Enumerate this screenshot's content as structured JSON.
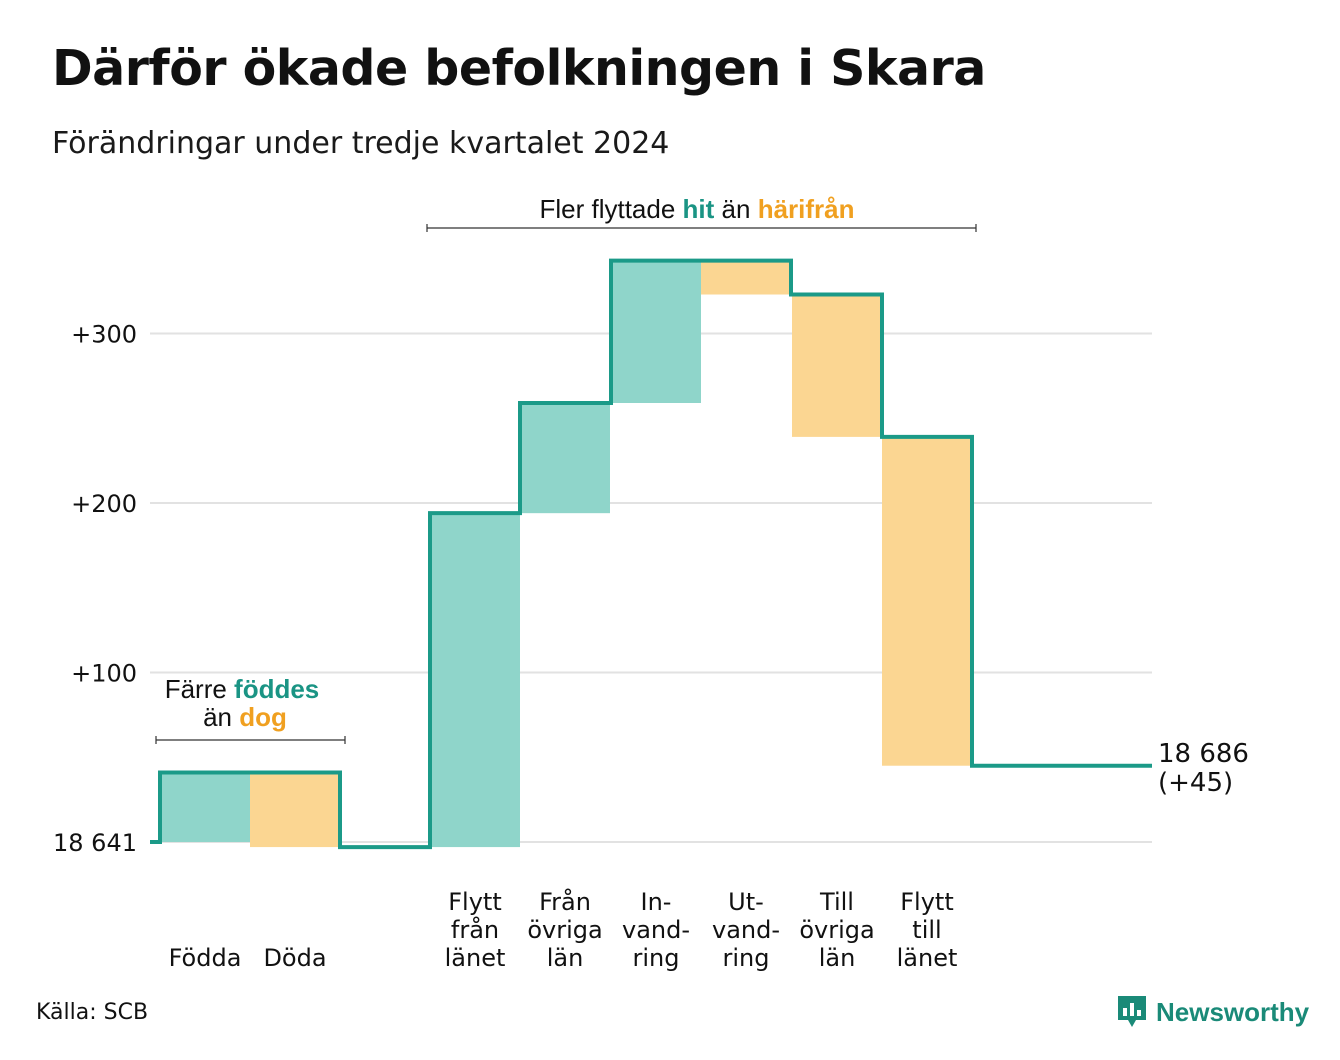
{
  "title": "Därför ökade befolkningen i Skara",
  "subtitle": "Förändringar under tredje kvartalet 2024",
  "source": "Källa: SCB",
  "logo": {
    "text": "Newsworthy",
    "icon": "newsworthy-logo-icon"
  },
  "colors": {
    "increase": "#8fd5ca",
    "decrease": "#fbd692",
    "line": "#1b9a88",
    "grid": "#e2e2e2",
    "teal_text": "#1a9484",
    "orange_text": "#f0a020"
  },
  "annotations": {
    "births": {
      "prefix": "Färre ",
      "teal_word": "föddes",
      "second_prefix": "än ",
      "orange_word": "dog"
    },
    "migration": {
      "prefix": "Fler flyttade ",
      "teal_word": "hit",
      "middle": " än ",
      "orange_word": "härifrån"
    }
  },
  "end_label": {
    "value": "18 686",
    "change": "(+45)"
  },
  "chart_data": {
    "type": "waterfall",
    "title": "Därför ökade befolkningen i Skara",
    "subtitle": "Förändringar under tredje kvartalet 2024",
    "start_value": 18641,
    "start_label": "18 641",
    "end_value": 18686,
    "end_change": 45,
    "yticks": [
      {
        "value": 0,
        "label": "18 641"
      },
      {
        "value": 100,
        "label": "+100"
      },
      {
        "value": 200,
        "label": "+200"
      },
      {
        "value": 300,
        "label": "+300"
      }
    ],
    "ylim": [
      0,
      350
    ],
    "grid": true,
    "components": [
      {
        "category": [
          "Födda"
        ],
        "change": 41,
        "kind": "increase",
        "cumulative_after": 41
      },
      {
        "category": [
          "Döda"
        ],
        "change": -44,
        "kind": "decrease",
        "cumulative_after": -3
      },
      {
        "category": [
          "Flytt",
          "från",
          "länet"
        ],
        "change": 197,
        "kind": "increase",
        "cumulative_after": 194
      },
      {
        "category": [
          "Från",
          "övriga",
          "län"
        ],
        "change": 65,
        "kind": "increase",
        "cumulative_after": 259
      },
      {
        "category": [
          "In-",
          "vand-",
          "ring"
        ],
        "change": 84,
        "kind": "increase",
        "cumulative_after": 343
      },
      {
        "category": [
          "Ut-",
          "vand-",
          "ring"
        ],
        "change": -20,
        "kind": "decrease",
        "cumulative_after": 323
      },
      {
        "category": [
          "Till",
          "övriga",
          "län"
        ],
        "change": -84,
        "kind": "decrease",
        "cumulative_after": 239
      },
      {
        "category": [
          "Flytt",
          "till",
          "länet"
        ],
        "change": -194,
        "kind": "decrease",
        "cumulative_after": 45
      }
    ]
  }
}
